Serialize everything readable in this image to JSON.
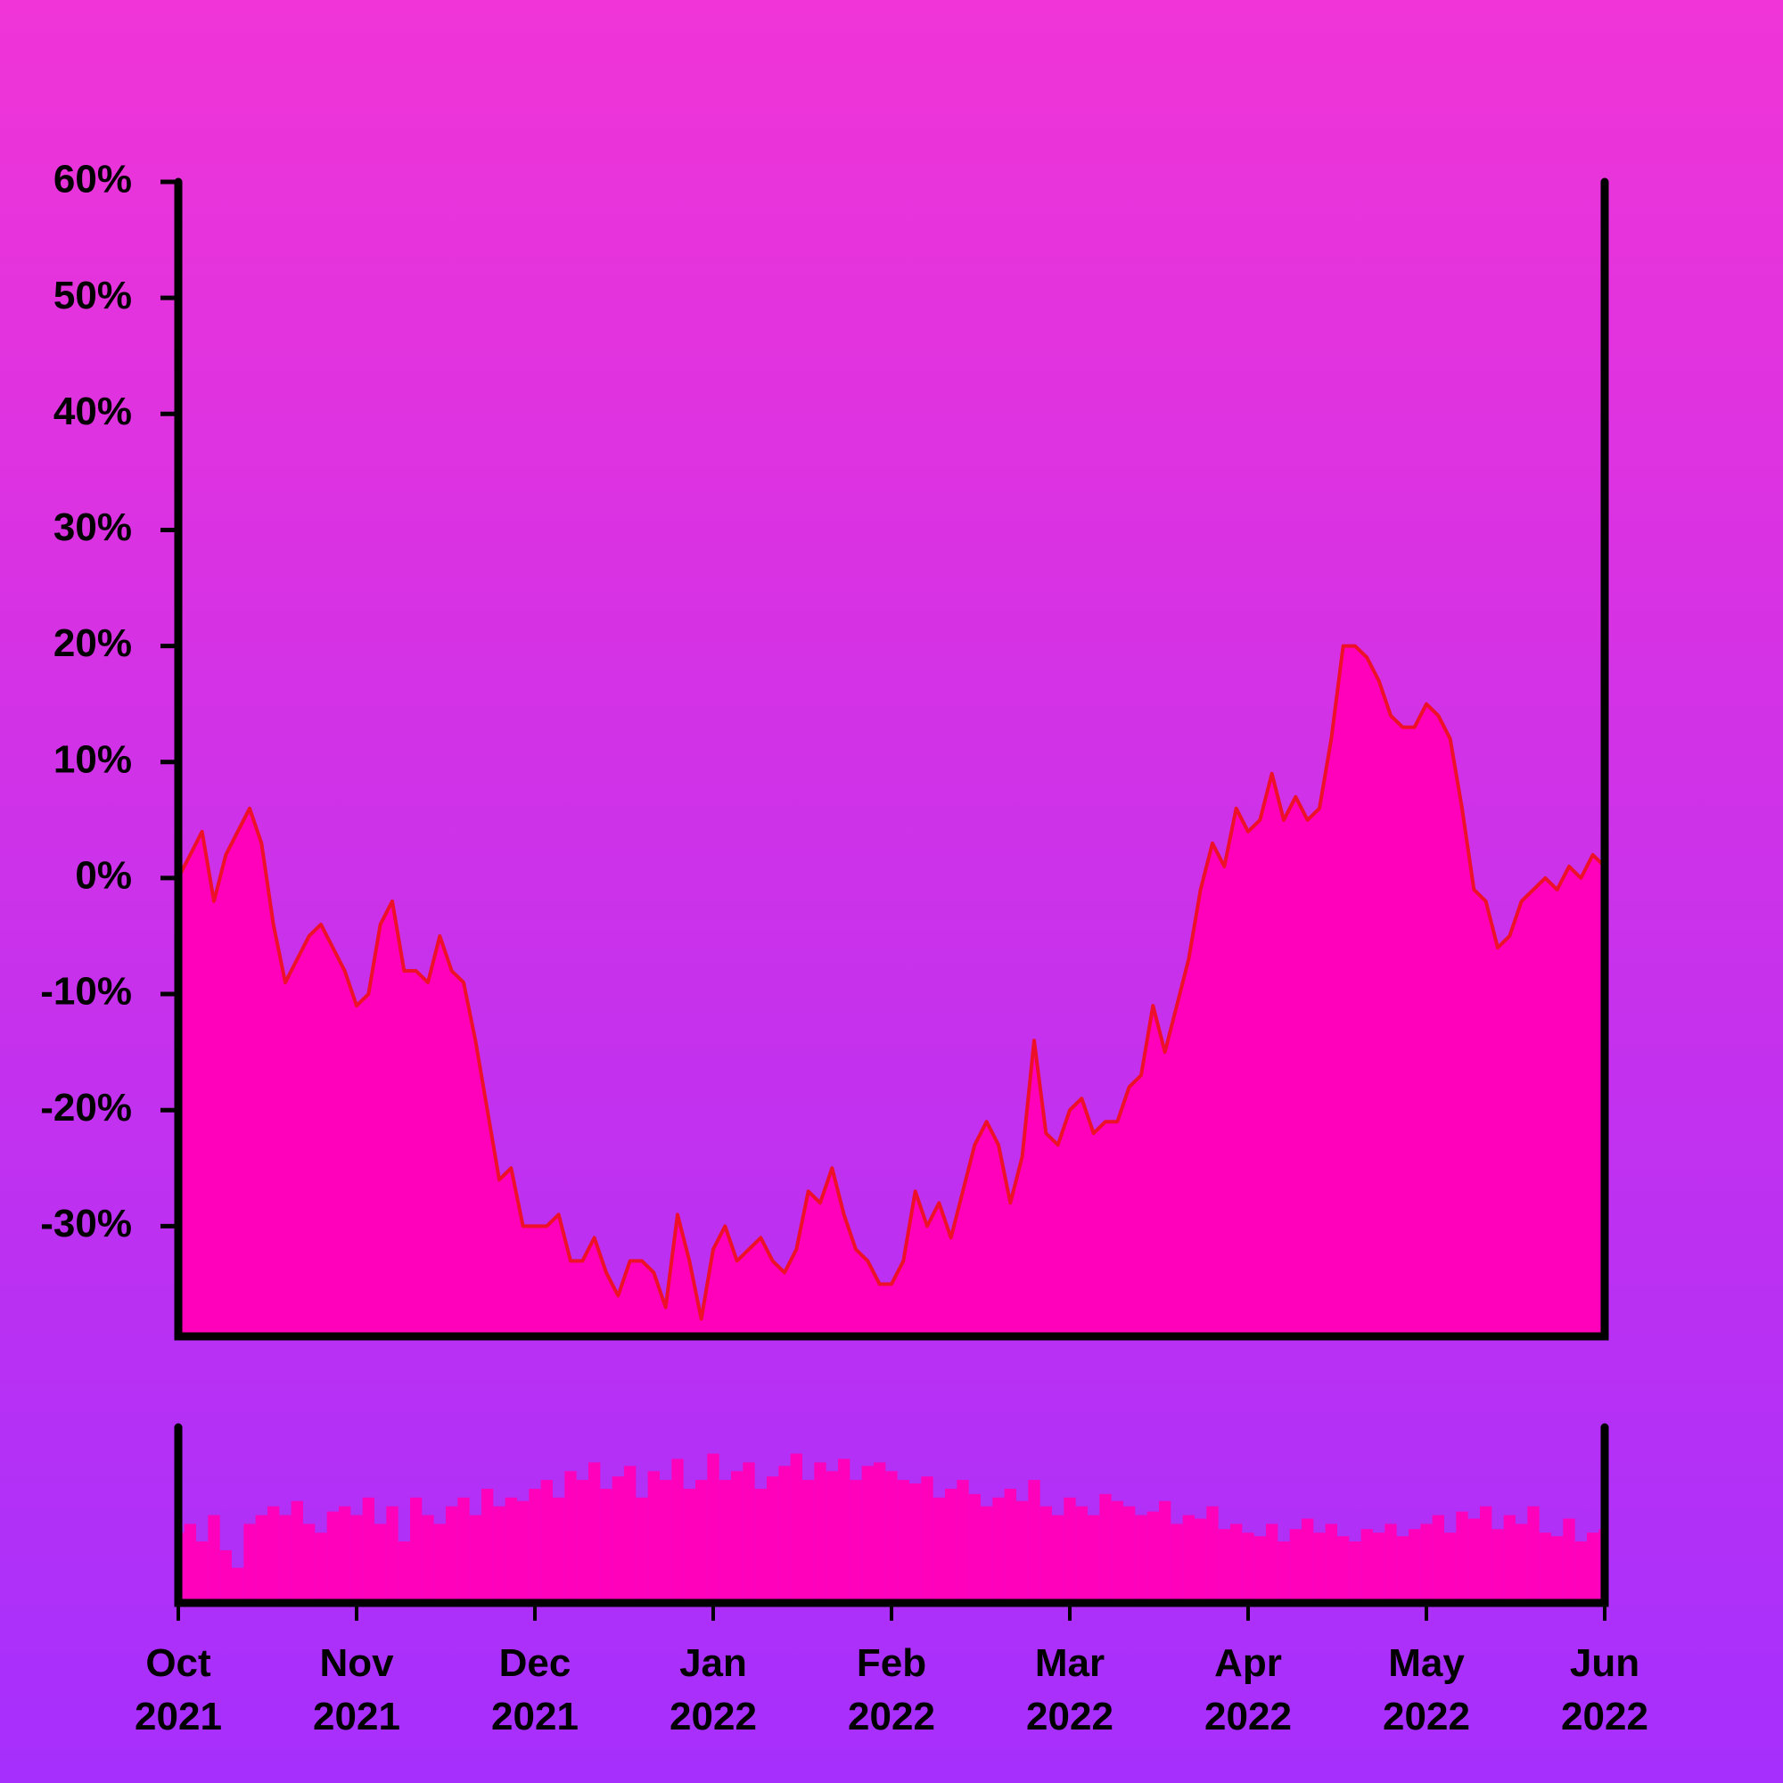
{
  "chart_data": [
    {
      "type": "area",
      "categories": [
        "Oct\n2021",
        null,
        null,
        null,
        null,
        null,
        null,
        null,
        null,
        null,
        null,
        null,
        null,
        null,
        null,
        "Nov\n2021",
        null,
        null,
        null,
        null,
        null,
        null,
        null,
        null,
        null,
        null,
        null,
        null,
        null,
        null,
        "Dec\n2021",
        null,
        null,
        null,
        null,
        null,
        null,
        null,
        null,
        null,
        null,
        null,
        null,
        null,
        null,
        "Jan\n2022",
        null,
        null,
        null,
        null,
        null,
        null,
        null,
        null,
        null,
        null,
        null,
        null,
        null,
        null,
        "Feb\n2022",
        null,
        null,
        null,
        null,
        null,
        null,
        null,
        null,
        null,
        null,
        null,
        null,
        null,
        null,
        "Mar\n2022",
        null,
        null,
        null,
        null,
        null,
        null,
        null,
        null,
        null,
        null,
        null,
        null,
        null,
        null,
        "Apr\n2022",
        null,
        null,
        null,
        null,
        null,
        null,
        null,
        null,
        null,
        null,
        null,
        null,
        null,
        null,
        "May\n2022",
        null,
        null,
        null,
        null,
        null,
        null,
        null,
        null,
        null,
        null,
        null,
        null,
        null,
        null,
        "Jun\n2022"
      ],
      "values": [
        0,
        2,
        4,
        -2,
        2,
        4,
        6,
        3,
        -4,
        -9,
        -7,
        -5,
        -4,
        -6,
        -8,
        -11,
        -10,
        -4,
        -2,
        -8,
        -8,
        -9,
        -5,
        -8,
        -9,
        -14,
        -20,
        -26,
        -25,
        -30,
        -30,
        -30,
        -29,
        -33,
        -33,
        -31,
        -34,
        -36,
        -33,
        -33,
        -34,
        -37,
        -29,
        -33,
        -38,
        -32,
        -30,
        -33,
        -32,
        -31,
        -33,
        -34,
        -32,
        -27,
        -28,
        -25,
        -29,
        -32,
        -33,
        -35,
        -35,
        -33,
        -27,
        -30,
        -28,
        -31,
        -27,
        -23,
        -21,
        -23,
        -28,
        -24,
        -14,
        -22,
        -23,
        -20,
        -19,
        -22,
        -21,
        -21,
        -18,
        -17,
        -11,
        -15,
        -11,
        -7,
        -1,
        3,
        1,
        6,
        4,
        5,
        9,
        5,
        7,
        5,
        6,
        12,
        20,
        20,
        19,
        17,
        14,
        13,
        13,
        15,
        14,
        12,
        6,
        -1,
        -2,
        -6,
        -5,
        -2,
        -1,
        0,
        -1,
        1,
        0,
        2,
        1
      ],
      "color": "#ff00bb",
      "line_color": "#ee1028",
      "ylim": [
        -39.5,
        60
      ],
      "yticks": [
        {
          "value": -30,
          "label": "-30%"
        },
        {
          "value": -20,
          "label": "-20%"
        },
        {
          "value": -10,
          "label": "-10%"
        },
        {
          "value": 0,
          "label": "0%"
        },
        {
          "value": 10,
          "label": "10%"
        },
        {
          "value": 20,
          "label": "20%"
        },
        {
          "value": 30,
          "label": "30%"
        },
        {
          "value": 40,
          "label": "40%"
        },
        {
          "value": 50,
          "label": "50%"
        },
        {
          "value": 60,
          "label": "60%"
        }
      ]
    },
    {
      "type": "bar",
      "values": [
        40,
        45,
        35,
        50,
        30,
        20,
        45,
        50,
        55,
        50,
        58,
        45,
        40,
        52,
        55,
        50,
        60,
        45,
        55,
        35,
        60,
        50,
        45,
        55,
        60,
        50,
        65,
        55,
        60,
        58,
        65,
        70,
        60,
        75,
        70,
        80,
        65,
        72,
        78,
        60,
        75,
        70,
        82,
        65,
        70,
        85,
        70,
        75,
        80,
        65,
        72,
        78,
        85,
        70,
        80,
        75,
        82,
        70,
        78,
        80,
        75,
        70,
        68,
        72,
        60,
        65,
        70,
        62,
        55,
        60,
        65,
        58,
        70,
        55,
        50,
        60,
        55,
        50,
        62,
        58,
        55,
        50,
        52,
        58,
        45,
        50,
        48,
        55,
        42,
        45,
        40,
        38,
        45,
        35,
        42,
        48,
        40,
        45,
        38,
        35,
        42,
        40,
        45,
        38,
        42,
        45,
        50,
        40,
        52,
        48,
        55,
        42,
        50,
        45,
        55,
        40,
        38,
        48,
        35,
        40,
        42
      ],
      "color": "#ff00bb",
      "ylim": [
        0,
        100
      ]
    }
  ]
}
